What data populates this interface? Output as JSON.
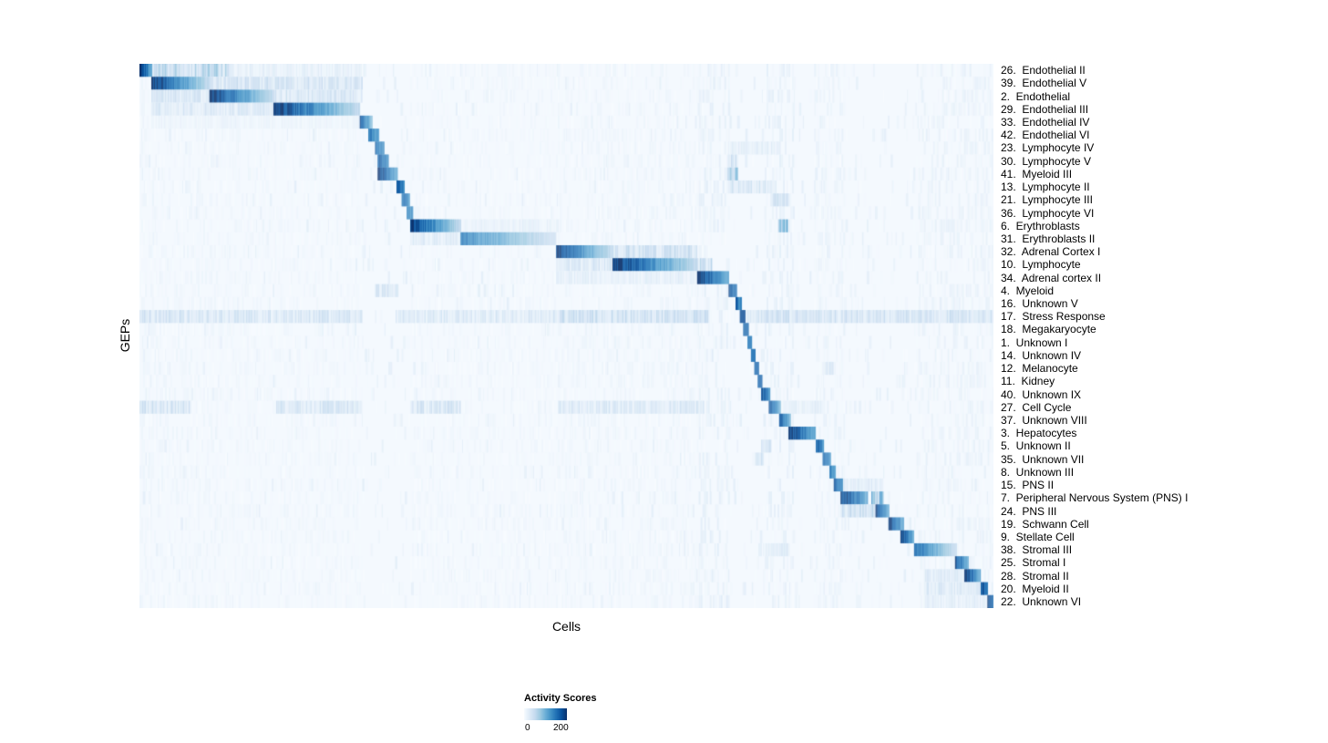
{
  "chart_data": {
    "type": "heatmap",
    "title": "",
    "xlabel": "Cells",
    "ylabel": "GEPs",
    "x_axis_note": "columns are individual cells ordered by dominant GEP; no x tick labels shown",
    "value_range": [
      0,
      200
    ],
    "colormap": "Blues",
    "colormap_stops": [
      "#f7fbff",
      "#deebf7",
      "#c6dbef",
      "#9ecae1",
      "#6baed6",
      "#4292c6",
      "#2171b5",
      "#08519c",
      "#08306b"
    ],
    "colorbar": {
      "title": "Activity Scores",
      "ticks": [
        0,
        200
      ],
      "tick_labels": [
        "0",
        "200"
      ],
      "position": "bottom-left"
    },
    "legend_position": "bottom",
    "grid": false,
    "global_bands": [
      [
        0.0,
        0.09,
        0.05
      ],
      [
        0.09,
        0.26,
        0.04
      ],
      [
        0.317,
        0.49,
        0.04
      ],
      [
        0.49,
        0.665,
        0.05
      ],
      [
        0.655,
        0.69,
        0.1
      ],
      [
        0.73,
        0.765,
        0.09
      ],
      [
        0.79,
        0.825,
        0.07
      ],
      [
        0.91,
        1.0,
        0.08
      ]
    ],
    "rows": [
      {
        "label": "26.  Endothelial II",
        "main": [
          0.0,
          0.014
        ],
        "peak": 1.0,
        "secondary": [
          [
            0.014,
            0.105,
            0.38
          ],
          [
            0.105,
            0.26,
            0.12
          ]
        ]
      },
      {
        "label": "39.  Endothelial V",
        "main": [
          0.014,
          0.082
        ],
        "peak": 1.0,
        "secondary": [
          [
            0.082,
            0.26,
            0.25
          ]
        ]
      },
      {
        "label": "2.  Endothelial",
        "main": [
          0.082,
          0.157
        ],
        "peak": 1.0,
        "secondary": [
          [
            0.014,
            0.082,
            0.22
          ],
          [
            0.157,
            0.26,
            0.22
          ]
        ]
      },
      {
        "label": "29.  Endothelial III",
        "main": [
          0.157,
          0.258
        ],
        "peak": 1.0,
        "secondary": [
          [
            0.014,
            0.157,
            0.18
          ]
        ]
      },
      {
        "label": "33.  Endothelial IV",
        "main": [
          0.258,
          0.272
        ],
        "peak": 0.85,
        "secondary": [
          [
            0.014,
            0.258,
            0.07
          ]
        ]
      },
      {
        "label": "42.  Endothelial VI",
        "main": [
          0.268,
          0.28
        ],
        "peak": 0.75,
        "secondary": []
      },
      {
        "label": "23.  Lymphocyte IV",
        "main": [
          0.276,
          0.286
        ],
        "peak": 0.8,
        "secondary": [
          [
            0.69,
            0.75,
            0.12
          ]
        ]
      },
      {
        "label": "30.  Lymphocyte V",
        "main": [
          0.279,
          0.291
        ],
        "peak": 0.85,
        "secondary": [
          [
            0.688,
            0.7,
            0.3
          ]
        ]
      },
      {
        "label": "41.  Myeloid III",
        "main": [
          0.279,
          0.302
        ],
        "peak": 1.0,
        "secondary": [
          [
            0.688,
            0.7,
            0.45
          ]
        ]
      },
      {
        "label": "13.  Lymphocyte II",
        "main": [
          0.301,
          0.31
        ],
        "peak": 0.85,
        "secondary": [
          [
            0.69,
            0.745,
            0.2
          ]
        ]
      },
      {
        "label": "21.  Lymphocyte III",
        "main": [
          0.307,
          0.316
        ],
        "peak": 0.8,
        "secondary": [
          [
            0.74,
            0.76,
            0.25
          ]
        ]
      },
      {
        "label": "36.  Lymphocyte VI",
        "main": [
          0.313,
          0.32
        ],
        "peak": 0.75,
        "secondary": []
      },
      {
        "label": "6.  Erythroblasts",
        "main": [
          0.317,
          0.376
        ],
        "peak": 0.95,
        "secondary": [
          [
            0.376,
            0.49,
            0.1
          ],
          [
            0.748,
            0.758,
            0.55
          ]
        ]
      },
      {
        "label": "31.  Erythroblasts II",
        "main": [
          0.376,
          0.488
        ],
        "peak": 0.7,
        "secondary": [
          [
            0.317,
            0.376,
            0.15
          ]
        ]
      },
      {
        "label": "32.  Adrenal Cortex I",
        "main": [
          0.488,
          0.554
        ],
        "peak": 1.0,
        "secondary": [
          [
            0.554,
            0.653,
            0.28
          ]
        ]
      },
      {
        "label": "10.  Lymphocyte",
        "main": [
          0.554,
          0.653
        ],
        "peak": 1.0,
        "secondary": [
          [
            0.488,
            0.554,
            0.2
          ],
          [
            0.653,
            0.67,
            0.3
          ]
        ]
      },
      {
        "label": "34.  Adrenal cortex II",
        "main": [
          0.653,
          0.69
        ],
        "peak": 1.0,
        "secondary": [
          [
            0.488,
            0.653,
            0.12
          ]
        ]
      },
      {
        "label": "4.  Myeloid",
        "main": [
          0.69,
          0.699
        ],
        "peak": 0.9,
        "secondary": [
          [
            0.276,
            0.302,
            0.22
          ]
        ]
      },
      {
        "label": "16.  Unknown V",
        "main": [
          0.698,
          0.705
        ],
        "peak": 0.8,
        "secondary": []
      },
      {
        "label": "17.  Stress Response",
        "main": [
          0.703,
          0.709
        ],
        "peak": 0.9,
        "secondary": [
          [
            0.0,
            0.26,
            0.22
          ],
          [
            0.3,
            0.49,
            0.18
          ],
          [
            0.49,
            0.665,
            0.28
          ],
          [
            0.71,
            1.0,
            0.25
          ]
        ]
      },
      {
        "label": "18.  Megakaryocyte",
        "main": [
          0.707,
          0.713
        ],
        "peak": 0.8,
        "secondary": []
      },
      {
        "label": "1.  Unknown I",
        "main": [
          0.712,
          0.717
        ],
        "peak": 0.7,
        "secondary": []
      },
      {
        "label": "14.  Unknown IV",
        "main": [
          0.716,
          0.721
        ],
        "peak": 0.75,
        "secondary": []
      },
      {
        "label": "12.  Melanocyte",
        "main": [
          0.72,
          0.725
        ],
        "peak": 0.8,
        "secondary": [
          [
            0.8,
            0.812,
            0.2
          ]
        ]
      },
      {
        "label": "11.  Kidney",
        "main": [
          0.724,
          0.729
        ],
        "peak": 0.8,
        "secondary": []
      },
      {
        "label": "40.  Unknown IX",
        "main": [
          0.728,
          0.738
        ],
        "peak": 0.85,
        "secondary": []
      },
      {
        "label": "27.  Cell Cycle",
        "main": [
          0.737,
          0.75
        ],
        "peak": 0.9,
        "secondary": [
          [
            0.0,
            0.06,
            0.25
          ],
          [
            0.16,
            0.26,
            0.22
          ],
          [
            0.317,
            0.376,
            0.22
          ],
          [
            0.49,
            0.66,
            0.2
          ],
          [
            0.76,
            0.8,
            0.12
          ]
        ]
      },
      {
        "label": "37.  Unknown VIII",
        "main": [
          0.749,
          0.762
        ],
        "peak": 0.9,
        "secondary": []
      },
      {
        "label": "3.  Hepatocytes",
        "main": [
          0.76,
          0.792
        ],
        "peak": 1.0,
        "secondary": []
      },
      {
        "label": "5.  Unknown II",
        "main": [
          0.792,
          0.801
        ],
        "peak": 0.85,
        "secondary": [
          [
            0.728,
            0.738,
            0.25
          ]
        ]
      },
      {
        "label": "35.  Unknown VII",
        "main": [
          0.8,
          0.809
        ],
        "peak": 0.8,
        "secondary": [
          [
            0.72,
            0.73,
            0.25
          ]
        ]
      },
      {
        "label": "8.  Unknown III",
        "main": [
          0.808,
          0.815
        ],
        "peak": 0.75,
        "secondary": []
      },
      {
        "label": "15.  PNS II",
        "main": [
          0.813,
          0.823
        ],
        "peak": 0.85,
        "secondary": [
          [
            0.823,
            0.87,
            0.15
          ]
        ]
      },
      {
        "label": "7.  Peripheral Nervous System (PNS) I",
        "main": [
          0.821,
          0.852
        ],
        "peak": 1.0,
        "secondary": [
          [
            0.857,
            0.871,
            0.65
          ]
        ]
      },
      {
        "label": "24.  PNS III",
        "main": [
          0.862,
          0.878
        ],
        "peak": 0.9,
        "secondary": [
          [
            0.821,
            0.862,
            0.3
          ]
        ]
      },
      {
        "label": "19.  Schwann Cell",
        "main": [
          0.877,
          0.895
        ],
        "peak": 1.0,
        "secondary": []
      },
      {
        "label": "9.  Stellate Cell",
        "main": [
          0.891,
          0.907
        ],
        "peak": 1.0,
        "secondary": []
      },
      {
        "label": "38.  Stromal III",
        "main": [
          0.907,
          0.957
        ],
        "peak": 0.8,
        "secondary": [
          [
            0.73,
            0.76,
            0.15
          ]
        ]
      },
      {
        "label": "25.  Stromal I",
        "main": [
          0.955,
          0.97
        ],
        "peak": 0.9,
        "secondary": []
      },
      {
        "label": "28.  Stromal II",
        "main": [
          0.966,
          0.985
        ],
        "peak": 1.0,
        "secondary": [
          [
            0.92,
            0.966,
            0.15
          ]
        ]
      },
      {
        "label": "20.  Myeloid II",
        "main": [
          0.985,
          0.993
        ],
        "peak": 0.9,
        "secondary": [
          [
            0.92,
            0.985,
            0.18
          ]
        ]
      },
      {
        "label": "22.  Unknown VI",
        "main": [
          0.993,
          1.0
        ],
        "peak": 1.0,
        "secondary": [
          [
            0.92,
            0.993,
            0.12
          ]
        ]
      }
    ]
  },
  "colors": {
    "background": "#ffffff",
    "heatmap_low": "#f7fbff",
    "heatmap_high": "#08306b",
    "text": "#000000"
  }
}
